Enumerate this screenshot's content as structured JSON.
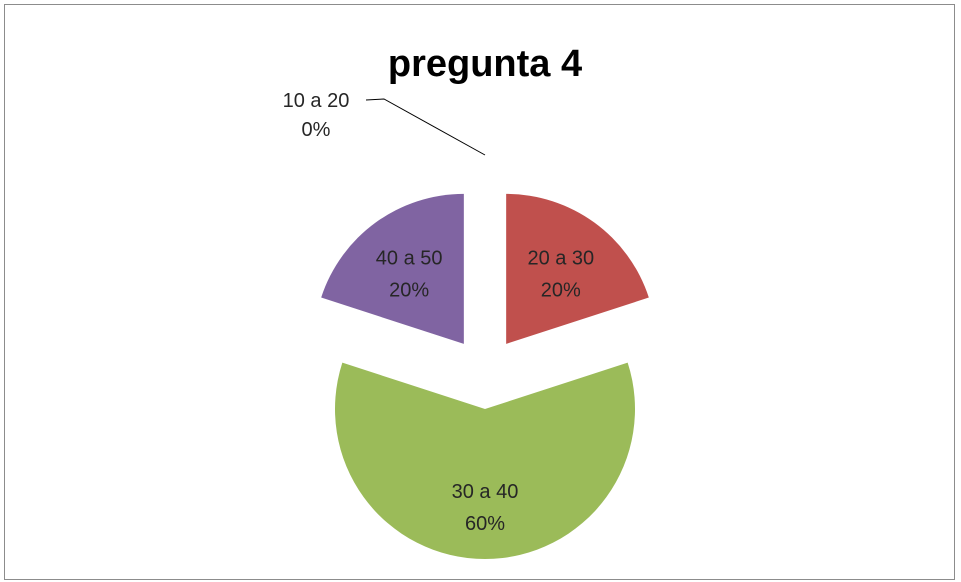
{
  "chart_data": {
    "type": "pie",
    "title": "pregunta 4",
    "slices": [
      {
        "category": "10 a 20",
        "value": 0,
        "label": "0%",
        "color": "#4f81bd"
      },
      {
        "category": "20 a 30",
        "value": 20,
        "label": "20%",
        "color": "#c0504d"
      },
      {
        "category": "30 a 40",
        "value": 60,
        "label": "60%",
        "color": "#9bbb59"
      },
      {
        "category": "40 a 50",
        "value": 20,
        "label": "20%",
        "color": "#8064a2"
      }
    ],
    "exploded": true,
    "legend": "none"
  }
}
